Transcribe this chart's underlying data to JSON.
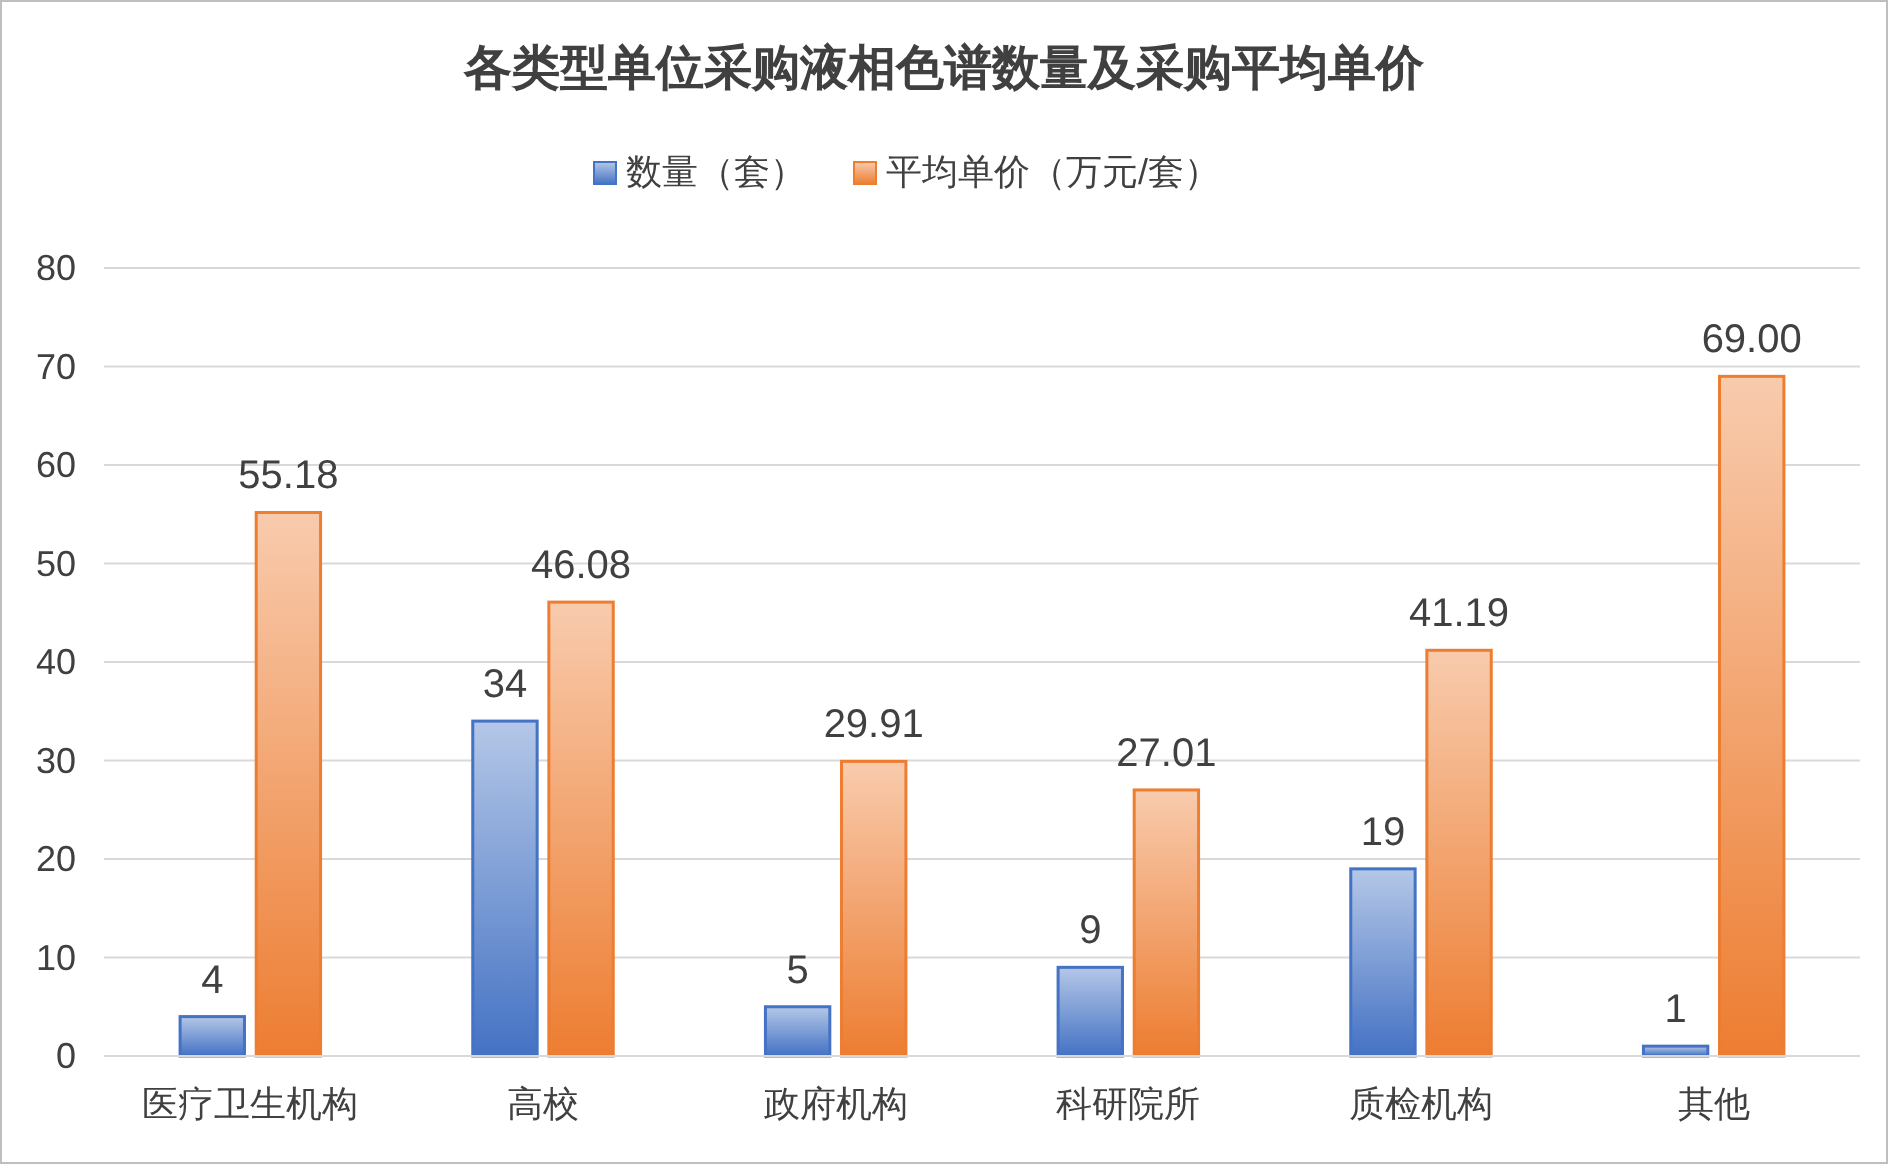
{
  "chart_data": {
    "type": "bar",
    "title": "各类型单位采购液相色谱数量及采购平均单价",
    "categories": [
      "医疗卫生机构",
      "高校",
      "政府机构",
      "科研院所",
      "质检机构",
      "其他"
    ],
    "series": [
      {
        "name": "数量（套）",
        "color": "#4472c4",
        "values": [
          4,
          34,
          5,
          9,
          19,
          1
        ],
        "value_labels": [
          "4",
          "34",
          "5",
          "9",
          "19",
          "1"
        ]
      },
      {
        "name": "平均单价（万元/套）",
        "color": "#ed7d31",
        "values": [
          55.18,
          46.08,
          29.91,
          27.01,
          41.19,
          69.0
        ],
        "value_labels": [
          "55.18",
          "46.08",
          "29.91",
          "27.01",
          "41.19",
          "69.00"
        ]
      }
    ],
    "ylim": [
      0,
      80
    ],
    "yticks": [
      0,
      10,
      20,
      30,
      40,
      50,
      60,
      70,
      80
    ],
    "grid": "y",
    "legend": "top"
  }
}
